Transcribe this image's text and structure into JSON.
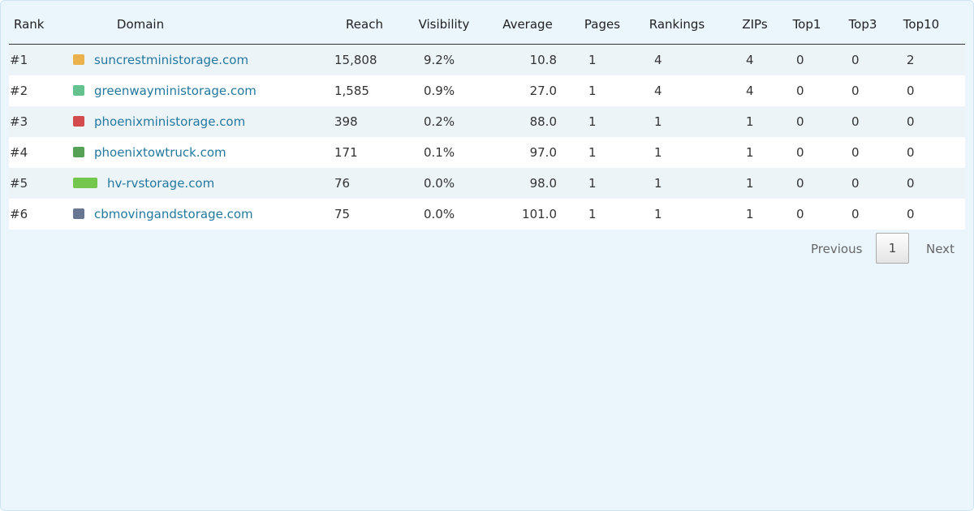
{
  "table": {
    "headers": [
      "Rank",
      "Domain",
      "Reach",
      "Visibility",
      "Average",
      "Pages",
      "Rankings",
      "ZIPs",
      "Top1",
      "Top3",
      "Top10"
    ],
    "rows": [
      [
        "#1",
        "suncrestministorage.com",
        "15,808",
        "9.2%",
        "10.8",
        "1",
        "4",
        "4",
        "0",
        "0",
        "2"
      ],
      [
        "#2",
        "greenwayministorage.com",
        "1,585",
        "0.9%",
        "27.0",
        "1",
        "4",
        "4",
        "0",
        "0",
        "0"
      ],
      [
        "#3",
        "phoenixministorage.com",
        "398",
        "0.2%",
        "88.0",
        "1",
        "1",
        "1",
        "0",
        "0",
        "0"
      ],
      [
        "#4",
        "phoenixtowtruck.com",
        "171",
        "0.1%",
        "97.0",
        "1",
        "1",
        "1",
        "0",
        "0",
        "0"
      ],
      [
        "#5",
        "hv-rvstorage.com",
        "76",
        "0.0%",
        "98.0",
        "1",
        "1",
        "1",
        "0",
        "0",
        "0"
      ],
      [
        "#6",
        "cbmovingandstorage.com",
        "75",
        "0.0%",
        "101.0",
        "1",
        "1",
        "1",
        "0",
        "0",
        "0"
      ]
    ]
  },
  "pagination": {
    "previous": "Previous",
    "current": "1",
    "next": "Next"
  }
}
